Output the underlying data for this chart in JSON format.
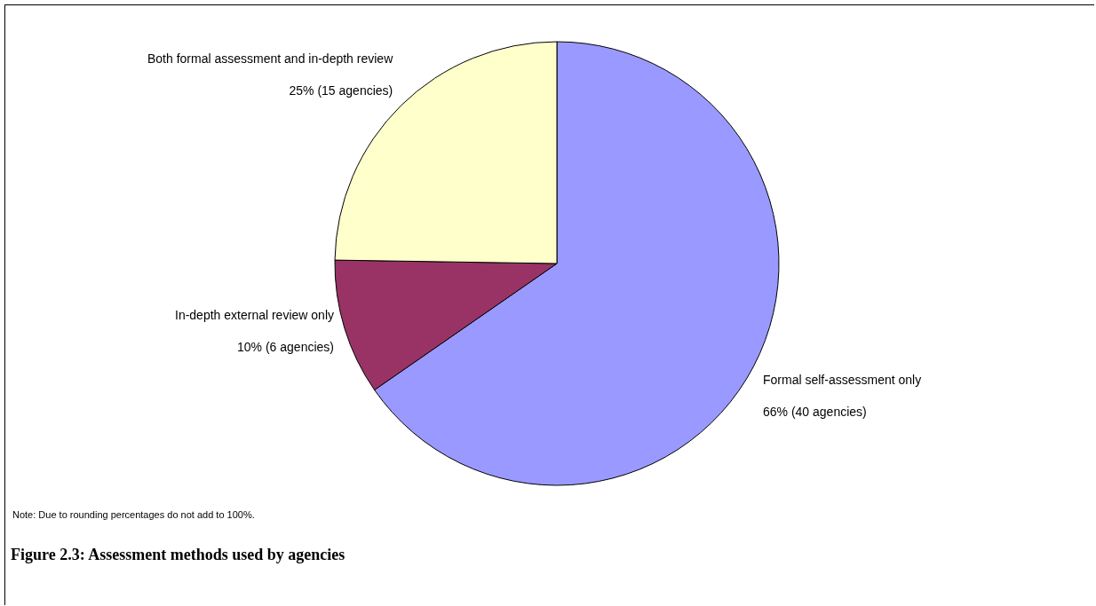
{
  "chart_data": {
    "type": "pie",
    "title": "Figure 2.3: Assessment methods used by agencies",
    "categories": [
      "Formal self-assessment only",
      "In-depth external review only",
      "Both formal assessment and in-depth review"
    ],
    "values": [
      66,
      10,
      25
    ],
    "value_labels": [
      "66% (40 agencies)",
      "10% (6 agencies)",
      "25% (15 agencies)"
    ],
    "colors": [
      "#9999ff",
      "#993366",
      "#ffffcc"
    ],
    "legend": false,
    "annotations": [
      "Note: Due to rounding percentages do not add to 100%."
    ]
  }
}
